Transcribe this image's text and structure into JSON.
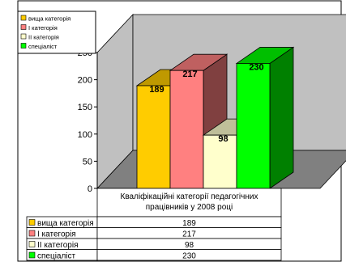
{
  "chart_data": {
    "type": "bar",
    "style": "3d",
    "title": "",
    "xlabel": "Кваліфікаційні категорії педагогічних працівників у 2008 році",
    "xlabel_lines": [
      "Кваліфікаційні категорії педагогічних",
      "працівників у 2008 році"
    ],
    "ylabel": "",
    "ylim": [
      0,
      250
    ],
    "yticks": [
      0,
      50,
      100,
      150,
      200,
      250
    ],
    "grid": false,
    "legend_position": "top-left",
    "series": [
      {
        "name": "вища категорія",
        "value": 189,
        "color": "#FFCC00"
      },
      {
        "name": "І категорія",
        "value": 217,
        "color": "#FF8080"
      },
      {
        "name": "ІІ категорія",
        "value": 98,
        "color": "#FFFFCC"
      },
      {
        "name": "спеціаліст",
        "value": 230,
        "color": "#00FF00"
      }
    ]
  }
}
